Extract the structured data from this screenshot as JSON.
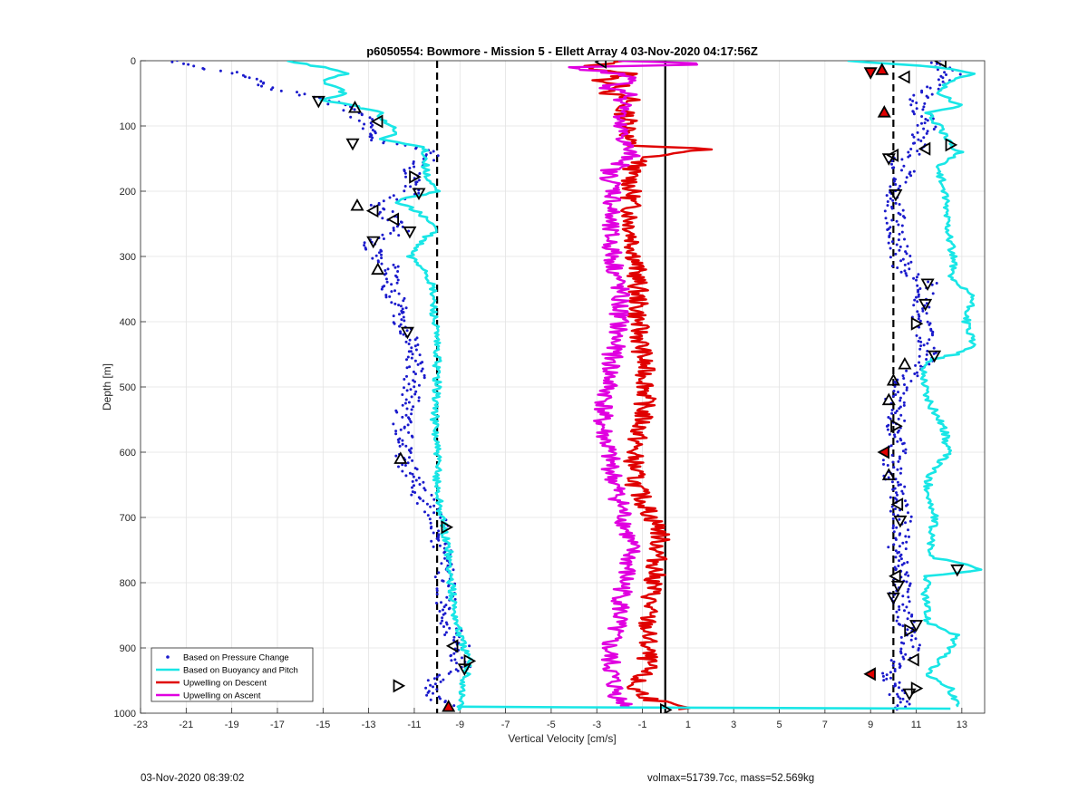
{
  "chart_data": {
    "type": "scatter",
    "title": "p6050554: Bowmore - Mission 5 - Ellett Array 4 03-Nov-2020 04:17:56Z",
    "xlabel": "Vertical Velocity [cm/s]",
    "ylabel": "Depth [m]",
    "xlim": [
      -23,
      14
    ],
    "ylim": [
      0,
      1000
    ],
    "y_reversed": true,
    "grid": true,
    "legend_position": "bottom-left",
    "x_ticks": [
      -23,
      -21,
      -19,
      -17,
      -15,
      -13,
      -11,
      -9,
      -7,
      -5,
      -3,
      -1,
      1,
      3,
      5,
      7,
      9,
      11,
      13
    ],
    "y_ticks": [
      0,
      100,
      200,
      300,
      400,
      500,
      600,
      700,
      800,
      900,
      1000
    ],
    "reference_lines": [
      {
        "x": -10,
        "style": "dashed",
        "color": "#000000"
      },
      {
        "x": 0,
        "style": "solid",
        "color": "#000000"
      },
      {
        "x": 10,
        "style": "dashed",
        "color": "#000000"
      }
    ],
    "series": [
      {
        "name": "Based on Pressure Change",
        "kind": "points",
        "color": "#1a1acc",
        "profiles": [
          {
            "depth": [
              0,
              10,
              20,
              40,
              60,
              80,
              100,
              120,
              140,
              160,
              180,
              200,
              220,
              240,
              260,
              280,
              300,
              320,
              350,
              400,
              450,
              500,
              550,
              600,
              650,
              700,
              750,
              800,
              850,
              900,
              930,
              960,
              990
            ],
            "velocity": [
              -21.5,
              -20.5,
              -18.5,
              -17.5,
              -15.0,
              -13.5,
              -13.0,
              -13.0,
              -10.0,
              -11.0,
              -11.0,
              -11.0,
              -12.5,
              -12.0,
              -11.5,
              -13.0,
              -12.5,
              -12.0,
              -12.0,
              -11.5,
              -11.0,
              -11.0,
              -11.5,
              -11.5,
              -11.0,
              -10.0,
              -9.8,
              -9.6,
              -9.6,
              -9.0,
              -9.0,
              -10.5,
              -9.5
            ]
          },
          {
            "depth": [
              0,
              20,
              40,
              60,
              80,
              100,
              120,
              140,
              150,
              170,
              190,
              210,
              240,
              280,
              320,
              340,
              370,
              400,
              430,
              460,
              500,
              540,
              580,
              620,
              660,
              700,
              740,
              780,
              820,
              860,
              900,
              940,
              970,
              995
            ],
            "velocity": [
              11.8,
              12.5,
              11.8,
              11.0,
              11.2,
              11.5,
              11.0,
              11.0,
              10.0,
              10.5,
              10.2,
              10.0,
              10.1,
              10.2,
              10.4,
              11.5,
              11.2,
              11.3,
              11.5,
              11.5,
              10.2,
              10.0,
              10.3,
              9.9,
              10.1,
              10.4,
              10.2,
              10.4,
              10.2,
              10.5,
              10.8,
              9.6,
              10.2,
              10.5
            ]
          }
        ]
      },
      {
        "name": "Based on Buoyancy and Pitch",
        "kind": "line",
        "color": "#19e6e6",
        "profiles": [
          {
            "depth": [
              0,
              10,
              20,
              30,
              40,
              50,
              60,
              70,
              80,
              90,
              100,
              110,
              120,
              130,
              135,
              150,
              180,
              200,
              215,
              225,
              240,
              260,
              270,
              290,
              300,
              320,
              350,
              400,
              450,
              500,
              550,
              600,
              650,
              700,
              720,
              750,
              800,
              850,
              880,
              900,
              920,
              950,
              990,
              995
            ],
            "velocity": [
              -16.5,
              -15.0,
              -14.0,
              -15.0,
              -14.5,
              -14.0,
              -15.0,
              -13.5,
              -12.5,
              -12.5,
              -12.0,
              -11.8,
              -12.5,
              -11.0,
              -10.5,
              -10.5,
              -10.5,
              -10.0,
              -11.8,
              -11.2,
              -10.5,
              -10.0,
              -10.5,
              -11.0,
              -11.2,
              -10.5,
              -10.2,
              -10.1,
              -10.0,
              -10.0,
              -10.1,
              -10.0,
              -10.0,
              -9.8,
              -9.7,
              -9.5,
              -9.4,
              -9.2,
              -9.0,
              -8.8,
              -8.6,
              -8.8,
              -9.0,
              -9.0
            ]
          },
          {
            "depth": [
              0,
              10,
              20,
              30,
              50,
              70,
              80,
              100,
              130,
              140,
              160,
              200,
              250,
              300,
              340,
              360,
              380,
              400,
              440,
              450,
              460,
              470,
              520,
              560,
              600,
              640,
              680,
              700,
              720,
              760,
              780,
              790,
              820,
              860,
              880,
              900,
              940,
              950,
              960,
              990
            ],
            "velocity": [
              8.0,
              12.0,
              13.5,
              12.5,
              12.0,
              13.0,
              11.5,
              12.0,
              12.5,
              13.0,
              12.0,
              12.2,
              12.4,
              12.6,
              12.6,
              13.5,
              13.3,
              13.2,
              13.5,
              12.7,
              11.5,
              11.3,
              11.5,
              12.2,
              12.4,
              11.5,
              11.6,
              11.8,
              11.7,
              11.6,
              14.0,
              11.5,
              11.4,
              11.5,
              12.8,
              12.5,
              11.5,
              11.8,
              12.5,
              12.8
            ]
          },
          {
            "depth": [
              990,
              991,
              992,
              993
            ],
            "velocity": [
              -9.0,
              -4.0,
              4.0,
              12.5
            ]
          }
        ]
      },
      {
        "name": "Upwelling on Descent",
        "kind": "line",
        "color": "#e00000",
        "profile": {
          "depth": [
            0,
            10,
            20,
            30,
            40,
            50,
            60,
            70,
            80,
            100,
            120,
            130,
            135,
            140,
            150,
            170,
            200,
            250,
            300,
            350,
            400,
            450,
            500,
            550,
            600,
            650,
            700,
            720,
            750,
            800,
            850,
            900,
            930,
            960,
            980,
            995
          ],
          "velocity": [
            -2.0,
            -3.5,
            -1.5,
            -2.8,
            -1.8,
            -2.5,
            -1.5,
            -2.0,
            -1.8,
            -1.5,
            -1.7,
            -1.5,
            2.0,
            0.5,
            -1.0,
            -1.5,
            -1.5,
            -1.5,
            -1.3,
            -1.2,
            -1.2,
            -1.0,
            -0.8,
            -1.0,
            -1.4,
            -1.3,
            -0.6,
            -0.2,
            -0.3,
            -0.5,
            -0.8,
            -0.8,
            -0.8,
            -1.5,
            -0.5,
            1.0
          ]
        }
      },
      {
        "name": "Upwelling on Ascent",
        "kind": "line",
        "color": "#e000e0",
        "profile": {
          "depth": [
            0,
            5,
            10,
            20,
            30,
            40,
            50,
            60,
            70,
            90,
            120,
            150,
            170,
            200,
            250,
            300,
            350,
            400,
            450,
            500,
            550,
            600,
            650,
            700,
            750,
            800,
            850,
            900,
            950,
            980,
            990
          ],
          "velocity": [
            -2.5,
            2.5,
            -4.5,
            -2.0,
            -1.0,
            -2.8,
            -1.5,
            -1.8,
            -1.5,
            -2.2,
            -1.8,
            -1.5,
            -2.5,
            -2.2,
            -2.5,
            -2.3,
            -2.0,
            -2.0,
            -2.3,
            -2.5,
            -2.8,
            -2.5,
            -2.2,
            -1.8,
            -1.5,
            -1.8,
            -2.0,
            -2.5,
            -2.3,
            -2.0,
            -1.5
          ]
        }
      }
    ],
    "markers": {
      "shape": "triangle",
      "points": [
        {
          "x": -15.2,
          "y": 62,
          "dir": "down"
        },
        {
          "x": -13.6,
          "y": 72,
          "dir": "up"
        },
        {
          "x": -12.6,
          "y": 93,
          "dir": "left"
        },
        {
          "x": -13.7,
          "y": 127,
          "dir": "down"
        },
        {
          "x": -11.0,
          "y": 178,
          "dir": "right"
        },
        {
          "x": -10.8,
          "y": 203,
          "dir": "down"
        },
        {
          "x": -13.5,
          "y": 222,
          "dir": "up"
        },
        {
          "x": -12.8,
          "y": 230,
          "dir": "left"
        },
        {
          "x": -11.9,
          "y": 243,
          "dir": "left"
        },
        {
          "x": -11.2,
          "y": 262,
          "dir": "down"
        },
        {
          "x": -12.8,
          "y": 277,
          "dir": "down"
        },
        {
          "x": -12.6,
          "y": 320,
          "dir": "up"
        },
        {
          "x": -11.3,
          "y": 416,
          "dir": "down"
        },
        {
          "x": -11.6,
          "y": 610,
          "dir": "up"
        },
        {
          "x": -9.6,
          "y": 715,
          "dir": "right"
        },
        {
          "x": -9.3,
          "y": 897,
          "dir": "left"
        },
        {
          "x": -8.6,
          "y": 920,
          "dir": "right"
        },
        {
          "x": -8.8,
          "y": 932,
          "dir": "down"
        },
        {
          "x": -11.7,
          "y": 958,
          "dir": "right"
        },
        {
          "x": -9.5,
          "y": 990,
          "dir": "up",
          "fill": "#e00000"
        },
        {
          "x": -2.8,
          "y": 2,
          "dir": "left"
        },
        {
          "x": 0.0,
          "y": 995,
          "dir": "right"
        },
        {
          "x": 12.1,
          "y": 1,
          "dir": "left"
        },
        {
          "x": 9.0,
          "y": 18,
          "dir": "down",
          "fill": "#e00000"
        },
        {
          "x": 9.5,
          "y": 14,
          "dir": "up",
          "fill": "#e00000"
        },
        {
          "x": 10.5,
          "y": 25,
          "dir": "left"
        },
        {
          "x": 9.6,
          "y": 79,
          "dir": "up",
          "fill": "#e00000"
        },
        {
          "x": 12.5,
          "y": 129,
          "dir": "right"
        },
        {
          "x": 11.4,
          "y": 135,
          "dir": "left"
        },
        {
          "x": 10.0,
          "y": 145,
          "dir": "left"
        },
        {
          "x": 9.8,
          "y": 150,
          "dir": "down"
        },
        {
          "x": 10.1,
          "y": 205,
          "dir": "down"
        },
        {
          "x": 11.5,
          "y": 342,
          "dir": "down"
        },
        {
          "x": 11.4,
          "y": 373,
          "dir": "down"
        },
        {
          "x": 11.0,
          "y": 403,
          "dir": "right"
        },
        {
          "x": 11.8,
          "y": 452,
          "dir": "down"
        },
        {
          "x": 10.5,
          "y": 465,
          "dir": "up"
        },
        {
          "x": 10.0,
          "y": 490,
          "dir": "up"
        },
        {
          "x": 9.8,
          "y": 520,
          "dir": "up"
        },
        {
          "x": 10.1,
          "y": 560,
          "dir": "right"
        },
        {
          "x": 9.6,
          "y": 600,
          "dir": "left",
          "fill": "#e00000"
        },
        {
          "x": 9.8,
          "y": 635,
          "dir": "up"
        },
        {
          "x": 10.2,
          "y": 680,
          "dir": "left"
        },
        {
          "x": 10.3,
          "y": 705,
          "dir": "down"
        },
        {
          "x": 12.8,
          "y": 780,
          "dir": "down"
        },
        {
          "x": 10.1,
          "y": 790,
          "dir": "left"
        },
        {
          "x": 10.2,
          "y": 805,
          "dir": "down"
        },
        {
          "x": 10.0,
          "y": 823,
          "dir": "down"
        },
        {
          "x": 10.7,
          "y": 873,
          "dir": "right"
        },
        {
          "x": 11.0,
          "y": 865,
          "dir": "down"
        },
        {
          "x": 10.9,
          "y": 918,
          "dir": "left"
        },
        {
          "x": 9.0,
          "y": 940,
          "dir": "left",
          "fill": "#e00000"
        },
        {
          "x": 11.0,
          "y": 962,
          "dir": "right"
        },
        {
          "x": 10.7,
          "y": 970,
          "dir": "down"
        }
      ]
    }
  },
  "footer": {
    "timestamp": "03-Nov-2020 08:39:02",
    "params": "volmax=51739.7cc, mass=52.569kg"
  }
}
